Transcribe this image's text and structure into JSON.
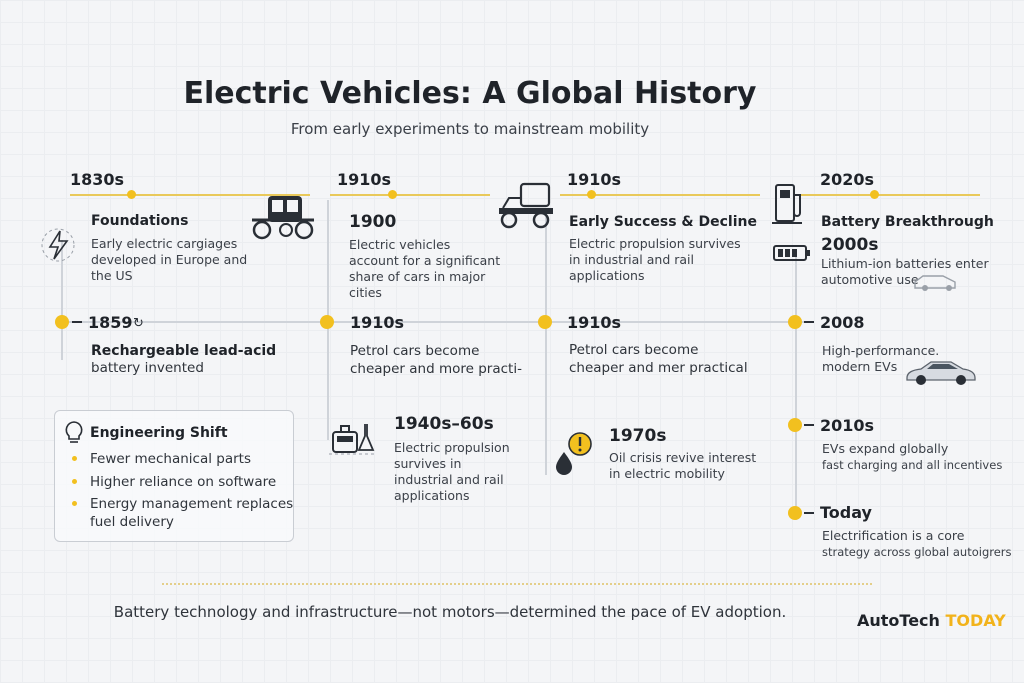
{
  "title": "Electric Vehicles: A Global History",
  "subtitle": "From early experiments to mainstream mobility",
  "columns": [
    {
      "era": "1830s",
      "items": [
        {
          "head": "Foundations",
          "body": [
            "Early electric cargiages",
            "developed in Europe and",
            "the US"
          ]
        },
        {
          "year": "1859",
          "head": "Rechargeable lead-acid",
          "body": [
            "battery invented"
          ]
        }
      ],
      "panel": {
        "title": "Engineering Shift",
        "bullets": [
          "Fewer mechanical parts",
          "Higher reliance on software",
          "Energy management replaces",
          "fuel delivery"
        ]
      }
    },
    {
      "era": "1910s",
      "items": [
        {
          "head": "1900",
          "body": [
            "Electric vehicles",
            "account for a significant",
            "share of cars in major",
            "cities"
          ]
        },
        {
          "year": "1910s",
          "body": [
            "Petrol cars become",
            "cheaper and more practi-"
          ]
        },
        {
          "head": "1940s–60s",
          "body": [
            "Electric propulsion",
            "survives in",
            "industrial and rail",
            "applications"
          ]
        }
      ]
    },
    {
      "era": "1910s",
      "items": [
        {
          "head": "Early Success & Decline",
          "body": [
            "Electric propulsion survives",
            "in industrial and rail",
            "applications"
          ]
        },
        {
          "year": "1910s",
          "body": [
            "Petrol cars become",
            "cheaper and mer practical"
          ]
        },
        {
          "head": "1970s",
          "body": [
            "Oil crisis revive interest",
            "in electric mobility"
          ]
        }
      ]
    },
    {
      "era": "2020s",
      "items": [
        {
          "head": "Battery Breakthrough",
          "sub": "2000s",
          "body": [
            "Lithium-ion batteries enter",
            "automotive use"
          ]
        },
        {
          "year": "2008",
          "body": [
            "High-performance.",
            "modern EVs"
          ]
        },
        {
          "year": "2010s",
          "body": [
            "EVs expand globally",
            "fast charging and all incentives"
          ]
        },
        {
          "year": "Today",
          "body": [
            "Electrification is a core",
            "strategy across global autoigrers"
          ]
        }
      ]
    }
  ],
  "footer": "Battery technology and infrastructure—not motors—determined the pace of EV adoption.",
  "brand": {
    "name": "AutoTech",
    "accent": "TODAY"
  },
  "colors": {
    "accent": "#f2c01f",
    "line": "#cfd3d9",
    "text": "#1f2329"
  }
}
